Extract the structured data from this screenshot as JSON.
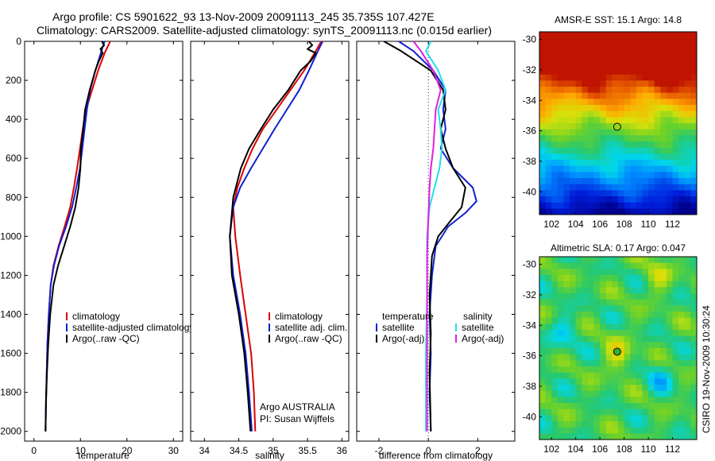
{
  "header": {
    "line1": "Argo profile: CS 5901622_93 13-Nov-2009 20091113_245 35.735S 107.427E",
    "line2": "Climatology: CARS2009. Satellite-adjusted climatology: synTS_20091113.nc (0.015d earlier)"
  },
  "side_note": "CSIRO 19-Nov-2009 10:30:24",
  "colors": {
    "climatology": "#dd0000",
    "satellite": "#1020d0",
    "argo": "#000000",
    "argo_adj_salinity": "#e020e0",
    "satellite_salinity": "#20e0e8"
  },
  "chart_data": [
    {
      "type": "line",
      "id": "temperature",
      "xlabel": "temperature",
      "xlim": [
        -2,
        32
      ],
      "ylim": [
        0,
        2050
      ],
      "y_reversed": true,
      "xticks": [
        0,
        10,
        20,
        30
      ],
      "yticks": [
        0,
        200,
        400,
        600,
        800,
        1000,
        1200,
        1400,
        1600,
        1800,
        2000
      ],
      "legend": [
        "climatology",
        "satellite-adjusted climatology",
        "Argo(..raw -QC)"
      ],
      "series": [
        {
          "name": "climatology",
          "color": "#dd0000",
          "x": [
            16.4,
            16.0,
            15.2,
            13.8,
            12.5,
            11.2,
            10.5,
            9.9,
            9.3,
            8.6,
            7.8,
            6.6,
            5.3,
            4.2,
            3.6,
            3.2,
            2.9,
            2.75,
            2.6,
            2.5
          ],
          "y": [
            0,
            20,
            60,
            150,
            250,
            350,
            450,
            550,
            650,
            750,
            850,
            950,
            1050,
            1150,
            1250,
            1400,
            1550,
            1700,
            1850,
            2000
          ]
        },
        {
          "name": "satellite-adjusted climatology",
          "color": "#1020d0",
          "x": [
            15.2,
            14.9,
            14.4,
            13.2,
            12.1,
            11.4,
            10.9,
            10.4,
            9.9,
            9.1,
            8.2,
            6.9,
            5.4,
            4.3,
            3.6,
            3.2,
            2.9,
            2.75,
            2.6,
            2.5
          ],
          "y": [
            0,
            20,
            60,
            150,
            250,
            350,
            450,
            550,
            650,
            750,
            850,
            950,
            1050,
            1150,
            1250,
            1400,
            1550,
            1700,
            1850,
            2000
          ]
        },
        {
          "name": "Argo(..raw -QC)",
          "color": "#000000",
          "x": [
            14.6,
            15.1,
            14.3,
            14.8,
            14.0,
            13.2,
            12.0,
            11.0,
            10.6,
            10.1,
            10.0,
            9.6,
            8.9,
            7.8,
            6.5,
            5.2,
            4.2,
            3.5,
            3.1,
            2.8,
            2.6,
            2.5
          ],
          "y": [
            0,
            20,
            40,
            60,
            100,
            150,
            250,
            350,
            450,
            550,
            650,
            750,
            850,
            950,
            1050,
            1150,
            1250,
            1400,
            1550,
            1700,
            1850,
            2000
          ]
        }
      ]
    },
    {
      "type": "line",
      "id": "salinity",
      "xlabel": "salinity",
      "xlim": [
        33.8,
        36.1
      ],
      "ylim": [
        0,
        2050
      ],
      "y_reversed": true,
      "xticks": [
        34,
        34.5,
        35,
        35.5,
        36
      ],
      "legend": [
        "climatology",
        "satellite adj. clim.",
        "Argo(..raw -QC)"
      ],
      "annotation": [
        "Argo AUSTRALIA",
        "PI: Susan Wijffels"
      ],
      "series": [
        {
          "name": "climatology",
          "color": "#dd0000",
          "x": [
            35.7,
            35.62,
            35.45,
            35.25,
            35.05,
            34.85,
            34.7,
            34.58,
            34.48,
            34.42,
            34.45,
            34.52,
            34.6,
            34.68,
            34.72,
            34.74
          ],
          "y": [
            0,
            50,
            150,
            250,
            350,
            450,
            550,
            650,
            750,
            850,
            1000,
            1200,
            1400,
            1600,
            1800,
            2000
          ]
        },
        {
          "name": "satellite adj. clim.",
          "color": "#1020d0",
          "x": [
            35.72,
            35.65,
            35.52,
            35.38,
            35.2,
            35.02,
            34.85,
            34.68,
            34.52,
            34.42,
            34.37,
            34.42,
            34.52,
            34.6,
            34.65,
            34.69
          ],
          "y": [
            0,
            50,
            150,
            250,
            350,
            450,
            550,
            650,
            750,
            850,
            1000,
            1200,
            1400,
            1600,
            1800,
            2000
          ]
        },
        {
          "name": "Argo(..raw -QC)",
          "color": "#000000",
          "x": [
            35.52,
            35.57,
            35.5,
            35.62,
            35.55,
            35.4,
            35.22,
            35.0,
            34.82,
            34.65,
            34.53,
            34.42,
            34.37,
            34.4,
            34.5,
            34.58,
            34.63,
            34.67
          ],
          "y": [
            0,
            20,
            40,
            60,
            100,
            150,
            250,
            350,
            450,
            550,
            650,
            800,
            1000,
            1200,
            1400,
            1600,
            1800,
            2000
          ]
        }
      ]
    },
    {
      "type": "line",
      "id": "difference",
      "xlabel": "difference from climatology",
      "xlim": [
        -2.9,
        3.5
      ],
      "ylim": [
        0,
        2050
      ],
      "y_reversed": true,
      "xticks": [
        -2,
        0,
        2
      ],
      "zero_line": true,
      "legend_groups": [
        {
          "title": "temperature",
          "items": [
            "satellite",
            "Argo(-adj)"
          ]
        },
        {
          "title": "salinity",
          "items": [
            "satellite",
            "Argo(-adj)"
          ]
        }
      ],
      "series": [
        {
          "name": "temperature satellite",
          "color": "#1020d0",
          "x": [
            -1.2,
            -0.6,
            0.2,
            0.7,
            0.6,
            0.7,
            0.5,
            1.0,
            1.8,
            1.95,
            1.5,
            0.8,
            0.3,
            0.15,
            0.05,
            0.1,
            0.05,
            0.1
          ],
          "y": [
            0,
            50,
            150,
            250,
            350,
            450,
            550,
            650,
            750,
            820,
            880,
            950,
            1050,
            1200,
            1400,
            1600,
            1800,
            2000
          ]
        },
        {
          "name": "temperature Argo(-adj)",
          "color": "#000000",
          "x": [
            -1.8,
            -1.1,
            0.1,
            0.6,
            0.7,
            0.5,
            0.7,
            1.0,
            1.5,
            1.35,
            0.9,
            0.4,
            0.15,
            0.05,
            0.1,
            0.05,
            0.1
          ],
          "y": [
            0,
            50,
            150,
            250,
            350,
            450,
            550,
            650,
            750,
            850,
            920,
            1000,
            1100,
            1300,
            1500,
            1700,
            2000
          ]
        },
        {
          "name": "salinity satellite",
          "color": "#20e0e8",
          "x": [
            0.1,
            -0.1,
            0.4,
            0.7,
            0.4,
            0.5,
            0.55,
            0.45,
            0.25,
            0.05,
            -0.05,
            -0.05,
            -0.1,
            -0.1
          ],
          "y": [
            0,
            50,
            150,
            250,
            350,
            450,
            550,
            650,
            750,
            850,
            1000,
            1300,
            1600,
            2000
          ]
        },
        {
          "name": "salinity Argo(-adj)",
          "color": "#e020e0",
          "x": [
            -0.6,
            -0.3,
            0.2,
            0.5,
            0.3,
            0.25,
            0.2,
            0.1,
            0.05,
            0.0,
            -0.05,
            -0.05,
            -0.05
          ],
          "y": [
            0,
            50,
            150,
            250,
            350,
            450,
            550,
            650,
            750,
            900,
            1100,
            1500,
            2000
          ]
        }
      ]
    },
    {
      "type": "heatmap",
      "id": "amsr-sst",
      "title": "AMSR-E SST: 15.1 Argo: 14.8",
      "xlim": [
        101,
        114
      ],
      "ylim": [
        -41.5,
        -29.5
      ],
      "xticks": [
        102,
        104,
        106,
        108,
        110,
        112
      ],
      "yticks": [
        -30,
        -32,
        -34,
        -36,
        -38,
        -40
      ],
      "marker": {
        "lon": 107.427,
        "lat": -35.735
      }
    },
    {
      "type": "heatmap",
      "id": "altimetric-sla",
      "title": "Altimetric SLA: 0.17 Argo: 0.047",
      "xlim": [
        101,
        114
      ],
      "ylim": [
        -41.5,
        -29.5
      ],
      "xticks": [
        102,
        104,
        106,
        108,
        110,
        112
      ],
      "yticks": [
        -30,
        -32,
        -34,
        -36,
        -38,
        -40
      ],
      "marker": {
        "lon": 107.427,
        "lat": -35.735
      }
    }
  ]
}
